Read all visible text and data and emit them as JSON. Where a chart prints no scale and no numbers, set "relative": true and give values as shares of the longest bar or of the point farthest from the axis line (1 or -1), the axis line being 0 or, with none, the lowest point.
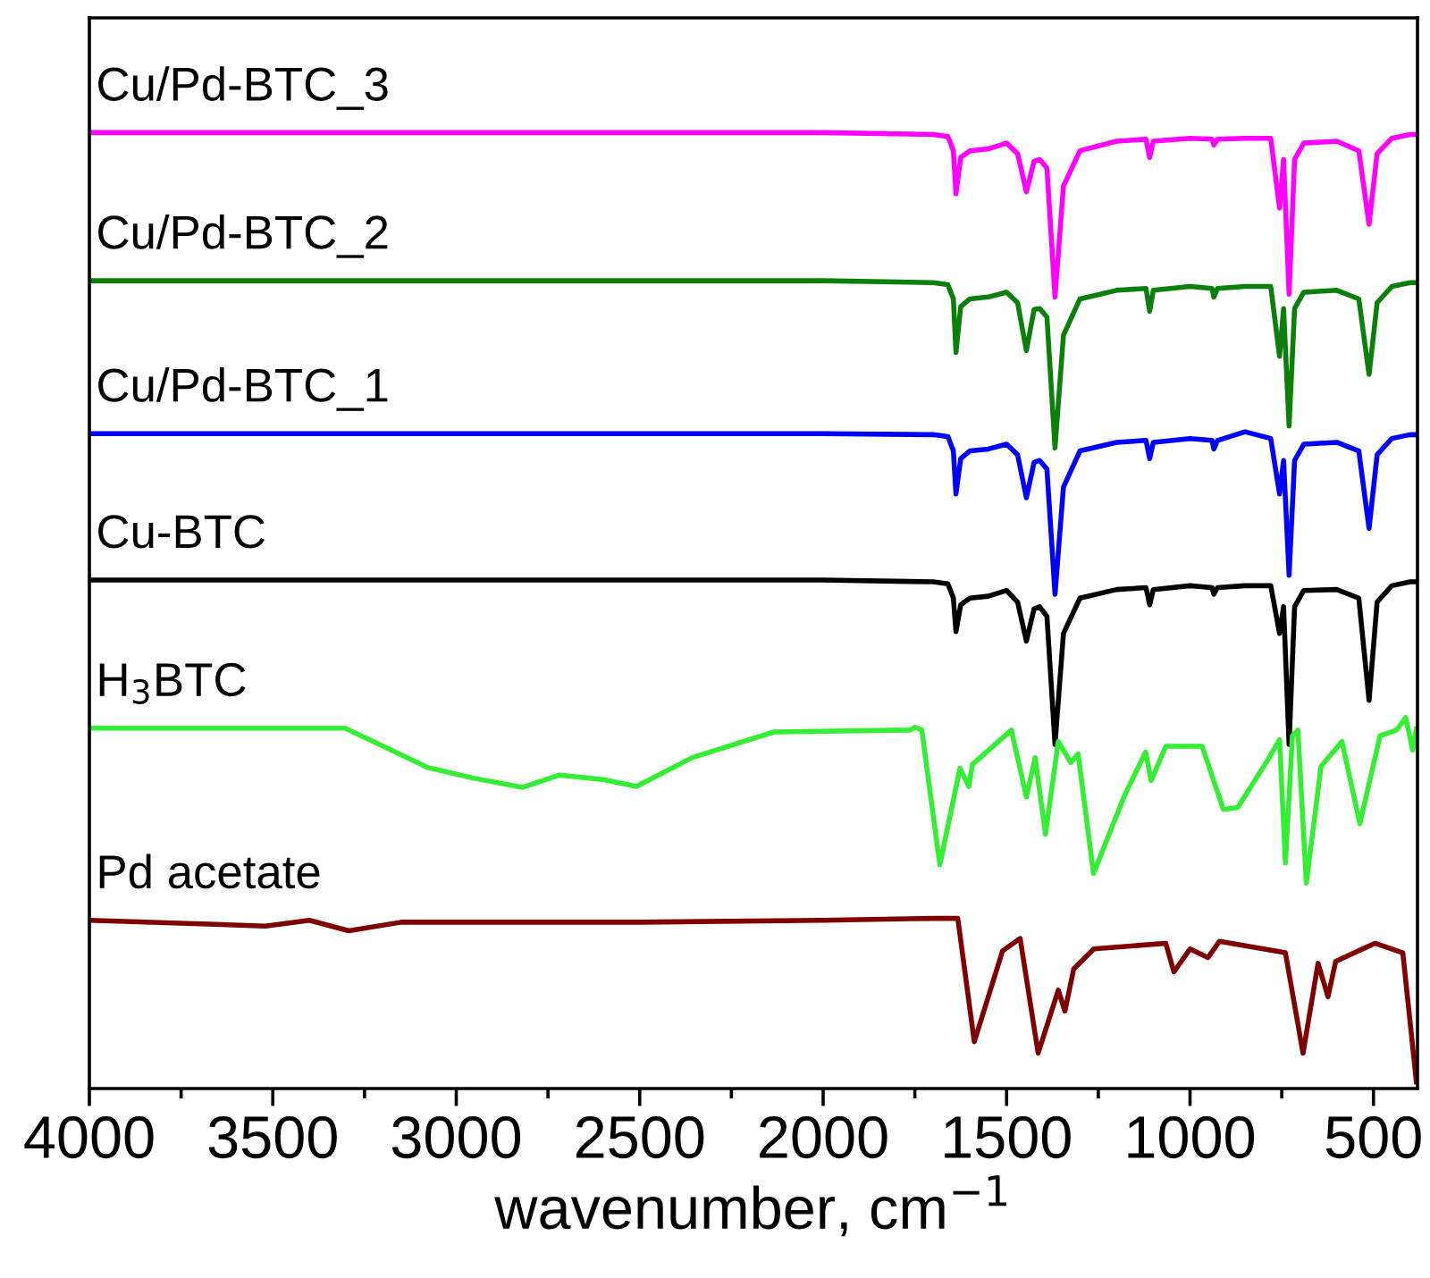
{
  "chart_data": {
    "type": "line",
    "relative": true,
    "xlabel": "wavenumber, cm$^{−1}$",
    "xlim": [
      4000,
      380
    ],
    "xticks": [
      4000,
      3500,
      3000,
      2500,
      2000,
      1500,
      1000,
      500
    ],
    "legend": false,
    "grid": false,
    "series": [
      {
        "name": "Cu/Pd-BTC_3",
        "color": "#ff00ff",
        "x": [
          4000,
          3500,
          3000,
          2500,
          2000,
          1700,
          1660,
          1645,
          1638,
          1625,
          1600,
          1550,
          1500,
          1470,
          1446,
          1425,
          1410,
          1390,
          1368,
          1345,
          1300,
          1200,
          1120,
          1110,
          1100,
          1000,
          940,
          935,
          925,
          850,
          780,
          756,
          745,
          730,
          715,
          690,
          600,
          540,
          512,
          490,
          450,
          400,
          383
        ],
        "values": [
          1,
          1,
          1,
          1,
          1,
          0.998,
          0.996,
          0.981,
          0.936,
          0.974,
          0.981,
          0.983,
          0.989,
          0.978,
          0.938,
          0.97,
          0.972,
          0.963,
          0.828,
          0.944,
          0.981,
          0.991,
          0.993,
          0.974,
          0.991,
          0.994,
          0.993,
          0.987,
          0.993,
          0.994,
          0.994,
          0.921,
          0.972,
          0.831,
          0.972,
          0.989,
          0.991,
          0.981,
          0.904,
          0.978,
          0.994,
          0.998,
          0.998
        ]
      },
      {
        "name": "Cu/Pd-BTC_2",
        "color": "#0a800a",
        "x": [
          4000,
          3500,
          3000,
          2500,
          2000,
          1700,
          1660,
          1645,
          1638,
          1625,
          1600,
          1550,
          1500,
          1470,
          1446,
          1425,
          1410,
          1390,
          1368,
          1345,
          1300,
          1200,
          1120,
          1110,
          1100,
          1000,
          940,
          935,
          925,
          850,
          780,
          756,
          745,
          730,
          715,
          690,
          600,
          540,
          512,
          490,
          450,
          400,
          383
        ],
        "values": [
          0.845,
          0.845,
          0.845,
          0.845,
          0.845,
          0.843,
          0.841,
          0.826,
          0.77,
          0.818,
          0.826,
          0.828,
          0.833,
          0.822,
          0.772,
          0.815,
          0.816,
          0.807,
          0.67,
          0.788,
          0.826,
          0.835,
          0.837,
          0.813,
          0.835,
          0.839,
          0.837,
          0.828,
          0.837,
          0.839,
          0.839,
          0.766,
          0.816,
          0.693,
          0.816,
          0.833,
          0.835,
          0.826,
          0.747,
          0.822,
          0.839,
          0.843,
          0.843
        ]
      },
      {
        "name": "Cu/Pd-BTC_1",
        "color": "#0000ff",
        "x": [
          4000,
          3500,
          3000,
          2500,
          2000,
          1700,
          1660,
          1645,
          1638,
          1625,
          1600,
          1550,
          1500,
          1470,
          1446,
          1425,
          1410,
          1390,
          1368,
          1345,
          1300,
          1200,
          1120,
          1110,
          1100,
          1000,
          940,
          935,
          925,
          850,
          780,
          756,
          745,
          730,
          715,
          690,
          600,
          540,
          512,
          490,
          450,
          400,
          383
        ],
        "values": [
          0.685,
          0.685,
          0.685,
          0.685,
          0.685,
          0.684,
          0.682,
          0.667,
          0.622,
          0.659,
          0.667,
          0.669,
          0.674,
          0.663,
          0.618,
          0.655,
          0.657,
          0.648,
          0.517,
          0.629,
          0.667,
          0.676,
          0.678,
          0.659,
          0.676,
          0.68,
          0.678,
          0.669,
          0.678,
          0.687,
          0.68,
          0.622,
          0.657,
          0.537,
          0.657,
          0.674,
          0.676,
          0.667,
          0.586,
          0.663,
          0.68,
          0.684,
          0.684
        ]
      },
      {
        "name": "Cu-BTC",
        "color": "#000000",
        "x": [
          4000,
          3500,
          3000,
          2500,
          2000,
          1700,
          1660,
          1645,
          1638,
          1625,
          1600,
          1550,
          1500,
          1470,
          1446,
          1425,
          1410,
          1390,
          1368,
          1345,
          1300,
          1200,
          1120,
          1110,
          1100,
          1000,
          940,
          935,
          925,
          850,
          780,
          756,
          745,
          730,
          715,
          690,
          600,
          540,
          512,
          490,
          450,
          400,
          383
        ],
        "values": [
          0.532,
          0.532,
          0.532,
          0.532,
          0.532,
          0.53,
          0.528,
          0.513,
          0.478,
          0.506,
          0.513,
          0.515,
          0.521,
          0.509,
          0.468,
          0.502,
          0.504,
          0.494,
          0.36,
          0.476,
          0.513,
          0.522,
          0.524,
          0.506,
          0.522,
          0.526,
          0.524,
          0.517,
          0.524,
          0.526,
          0.526,
          0.476,
          0.504,
          0.36,
          0.504,
          0.521,
          0.522,
          0.513,
          0.406,
          0.509,
          0.526,
          0.53,
          0.53
        ]
      },
      {
        "name": "H$_{3}$BTC",
        "color": "#33ee33",
        "x": [
          4000,
          3500,
          3303,
          3079,
          2957,
          2820,
          2718,
          2596,
          2509,
          2358,
          2134,
          1763,
          1749,
          1731,
          1682,
          1627,
          1603,
          1593,
          1487,
          1446,
          1422,
          1394,
          1359,
          1325,
          1305,
          1263,
          1178,
          1121,
          1106,
          1066,
          967,
          909,
          870,
          789,
          756,
          740,
          721,
          706,
          683,
          643,
          586,
          537,
          482,
          437,
          412,
          393,
          383
        ],
        "values": [
          0.377,
          0.377,
          0.377,
          0.336,
          0.325,
          0.315,
          0.328,
          0.323,
          0.316,
          0.346,
          0.373,
          0.375,
          0.378,
          0.375,
          0.234,
          0.335,
          0.316,
          0.339,
          0.375,
          0.305,
          0.346,
          0.266,
          0.363,
          0.341,
          0.35,
          0.225,
          0.307,
          0.352,
          0.322,
          0.358,
          0.358,
          0.292,
          0.294,
          0.343,
          0.365,
          0.236,
          0.369,
          0.375,
          0.215,
          0.337,
          0.363,
          0.277,
          0.369,
          0.375,
          0.388,
          0.354,
          0.376
        ]
      },
      {
        "name": "Pd acetate",
        "color": "#800000",
        "x": [
          4000,
          3520,
          3400,
          3293,
          3150,
          2500,
          2000,
          1700,
          1633,
          1588,
          1511,
          1463,
          1414,
          1359,
          1341,
          1317,
          1262,
          1066,
          1044,
          1000,
          951,
          920,
          740,
          692,
          651,
          624,
          603,
          496,
          420,
          383
        ],
        "values": [
          0.176,
          0.17,
          0.176,
          0.165,
          0.174,
          0.174,
          0.176,
          0.178,
          0.178,
          0.049,
          0.144,
          0.157,
          0.037,
          0.103,
          0.081,
          0.125,
          0.146,
          0.152,
          0.122,
          0.146,
          0.137,
          0.154,
          0.142,
          0.037,
          0.131,
          0.096,
          0.133,
          0.152,
          0.142,
          0.007
        ]
      }
    ]
  }
}
